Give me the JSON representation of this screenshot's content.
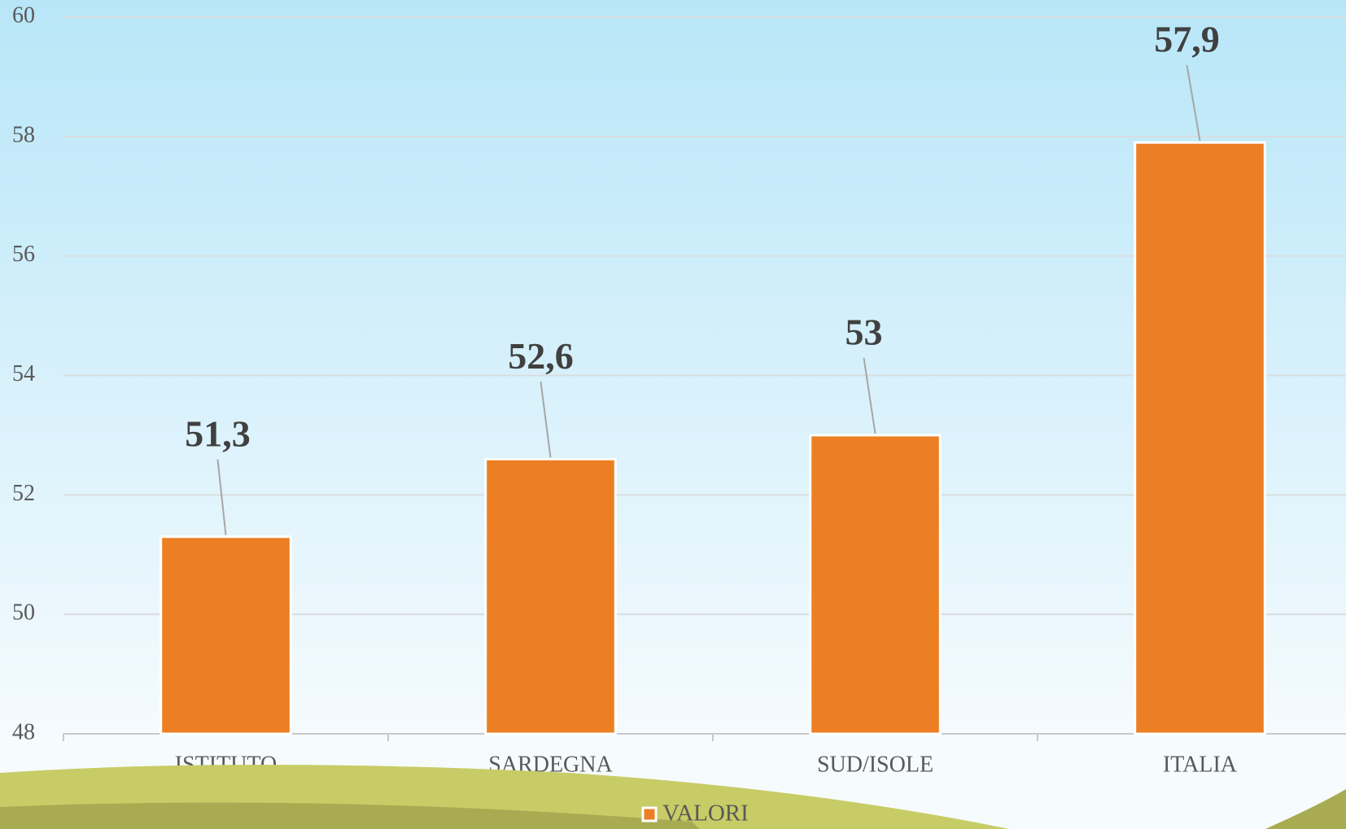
{
  "chart_data": {
    "type": "bar",
    "categories": [
      "ISTITUTO",
      "SARDEGNA",
      "SUD/ISOLE",
      "ITALIA"
    ],
    "series": [
      {
        "name": "VALORI",
        "color": "#ec7f24",
        "values": [
          51.3,
          52.6,
          53,
          57.9
        ],
        "value_labels": [
          "51,3",
          "52,6",
          "53",
          "57,9"
        ]
      }
    ],
    "ylim": [
      48,
      60
    ],
    "yticks": [
      48,
      50,
      52,
      54,
      56,
      58,
      60
    ],
    "grid": true,
    "legend": "bottom"
  }
}
